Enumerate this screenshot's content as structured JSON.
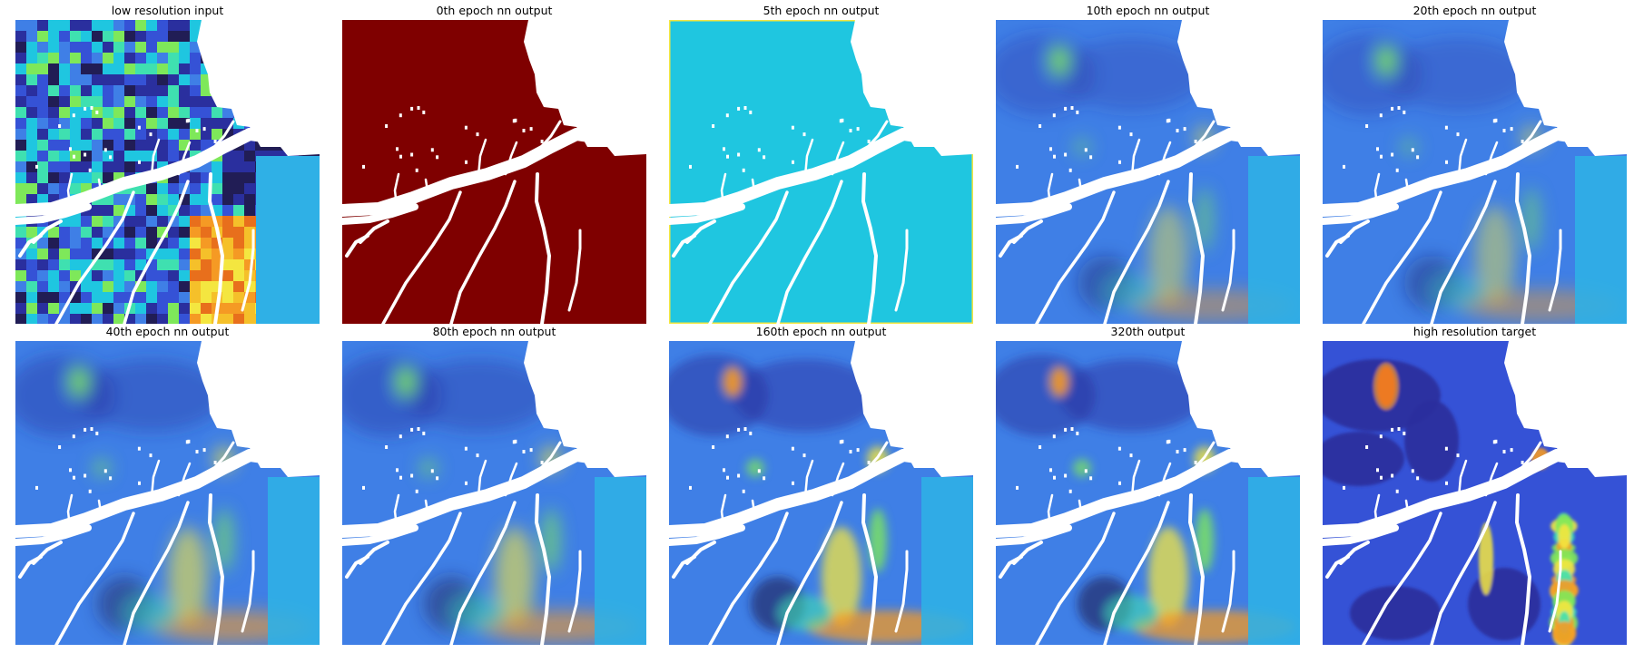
{
  "figure": {
    "panels": [
      {
        "id": "p0",
        "title": "low resolution input",
        "render": "lowres"
      },
      {
        "id": "p1",
        "title": "0th epoch nn output",
        "render": "flat-dark-red"
      },
      {
        "id": "p2",
        "title": "5th epoch nn output",
        "render": "flat-cyan"
      },
      {
        "id": "p3",
        "title": "10th epoch nn output",
        "render": "blurred-early"
      },
      {
        "id": "p4",
        "title": "20th epoch nn output",
        "render": "blurred-early"
      },
      {
        "id": "p5",
        "title": "40th epoch nn output",
        "render": "blurred-mid"
      },
      {
        "id": "p6",
        "title": "80th epoch nn output",
        "render": "blurred-mid"
      },
      {
        "id": "p7",
        "title": "160th epoch nn output",
        "render": "detailed"
      },
      {
        "id": "p8",
        "title": "320th output",
        "render": "detailed"
      },
      {
        "id": "p9",
        "title": "high resolution target",
        "render": "target"
      }
    ],
    "colormap": "jet",
    "colors": {
      "dark_red": "#7f0000",
      "cyan": "#1fc6e0",
      "mid_blue": "#3f7fe6",
      "deep_blue": "#2a2f9e",
      "navy": "#211d55",
      "yellow": "#f4e640",
      "orange": "#f59a24",
      "red": "#d9301e",
      "green": "#7ee85a",
      "water": "#ffffff"
    }
  }
}
